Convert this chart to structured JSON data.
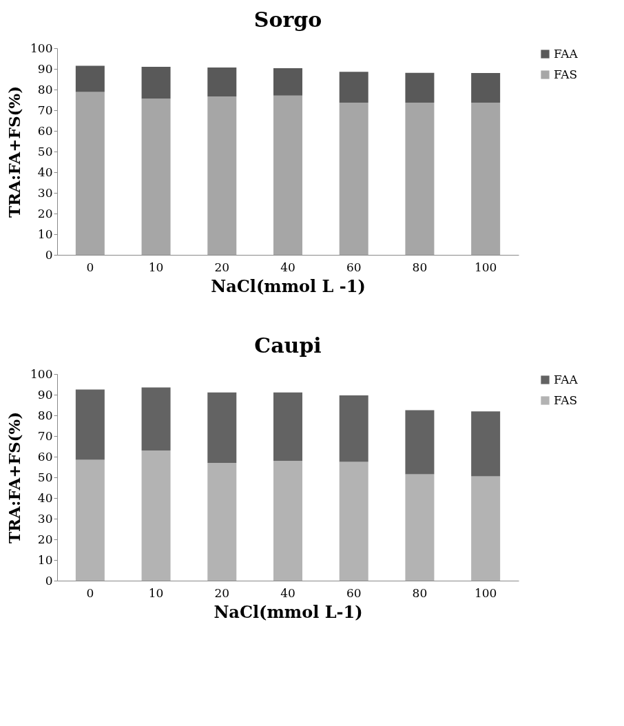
{
  "chart_data": [
    {
      "type": "bar",
      "title": "Sorgo",
      "xlabel": "NaCl(mmol L -1)",
      "ylabel": "TRA:FA+FS(%)",
      "categories": [
        "0",
        "10",
        "20",
        "40",
        "60",
        "80",
        "100"
      ],
      "stacked": true,
      "ylim": [
        0,
        100
      ],
      "yticks": [
        0,
        10,
        20,
        30,
        40,
        50,
        60,
        70,
        80,
        90,
        100
      ],
      "grid": false,
      "legend": "right",
      "series": [
        {
          "name": "FAS",
          "color": "#a6a6a6",
          "values": [
            78.8,
            75.6,
            76.7,
            77.1,
            73.7,
            73.7,
            73.7
          ]
        },
        {
          "name": "FAA",
          "color": "#595959",
          "values": [
            12.7,
            15.4,
            14.0,
            13.2,
            14.9,
            14.4,
            14.3
          ]
        }
      ]
    },
    {
      "type": "bar",
      "title": "Caupi",
      "xlabel": "NaCl(mmol L-1)",
      "ylabel": "TRA:FA+FS(%)",
      "categories": [
        "0",
        "10",
        "20",
        "40",
        "60",
        "80",
        "100"
      ],
      "stacked": true,
      "ylim": [
        0,
        100
      ],
      "yticks": [
        0,
        10,
        20,
        30,
        40,
        50,
        60,
        70,
        80,
        90,
        100
      ],
      "grid": false,
      "legend": "right",
      "series": [
        {
          "name": "FAS",
          "color": "#b3b3b3",
          "values": [
            58.5,
            63.0,
            57.0,
            58.0,
            57.5,
            51.5,
            50.5
          ]
        },
        {
          "name": "FAA",
          "color": "#636363",
          "values": [
            34.0,
            30.5,
            34.1,
            33.1,
            32.2,
            31.0,
            31.4
          ]
        }
      ]
    }
  ]
}
